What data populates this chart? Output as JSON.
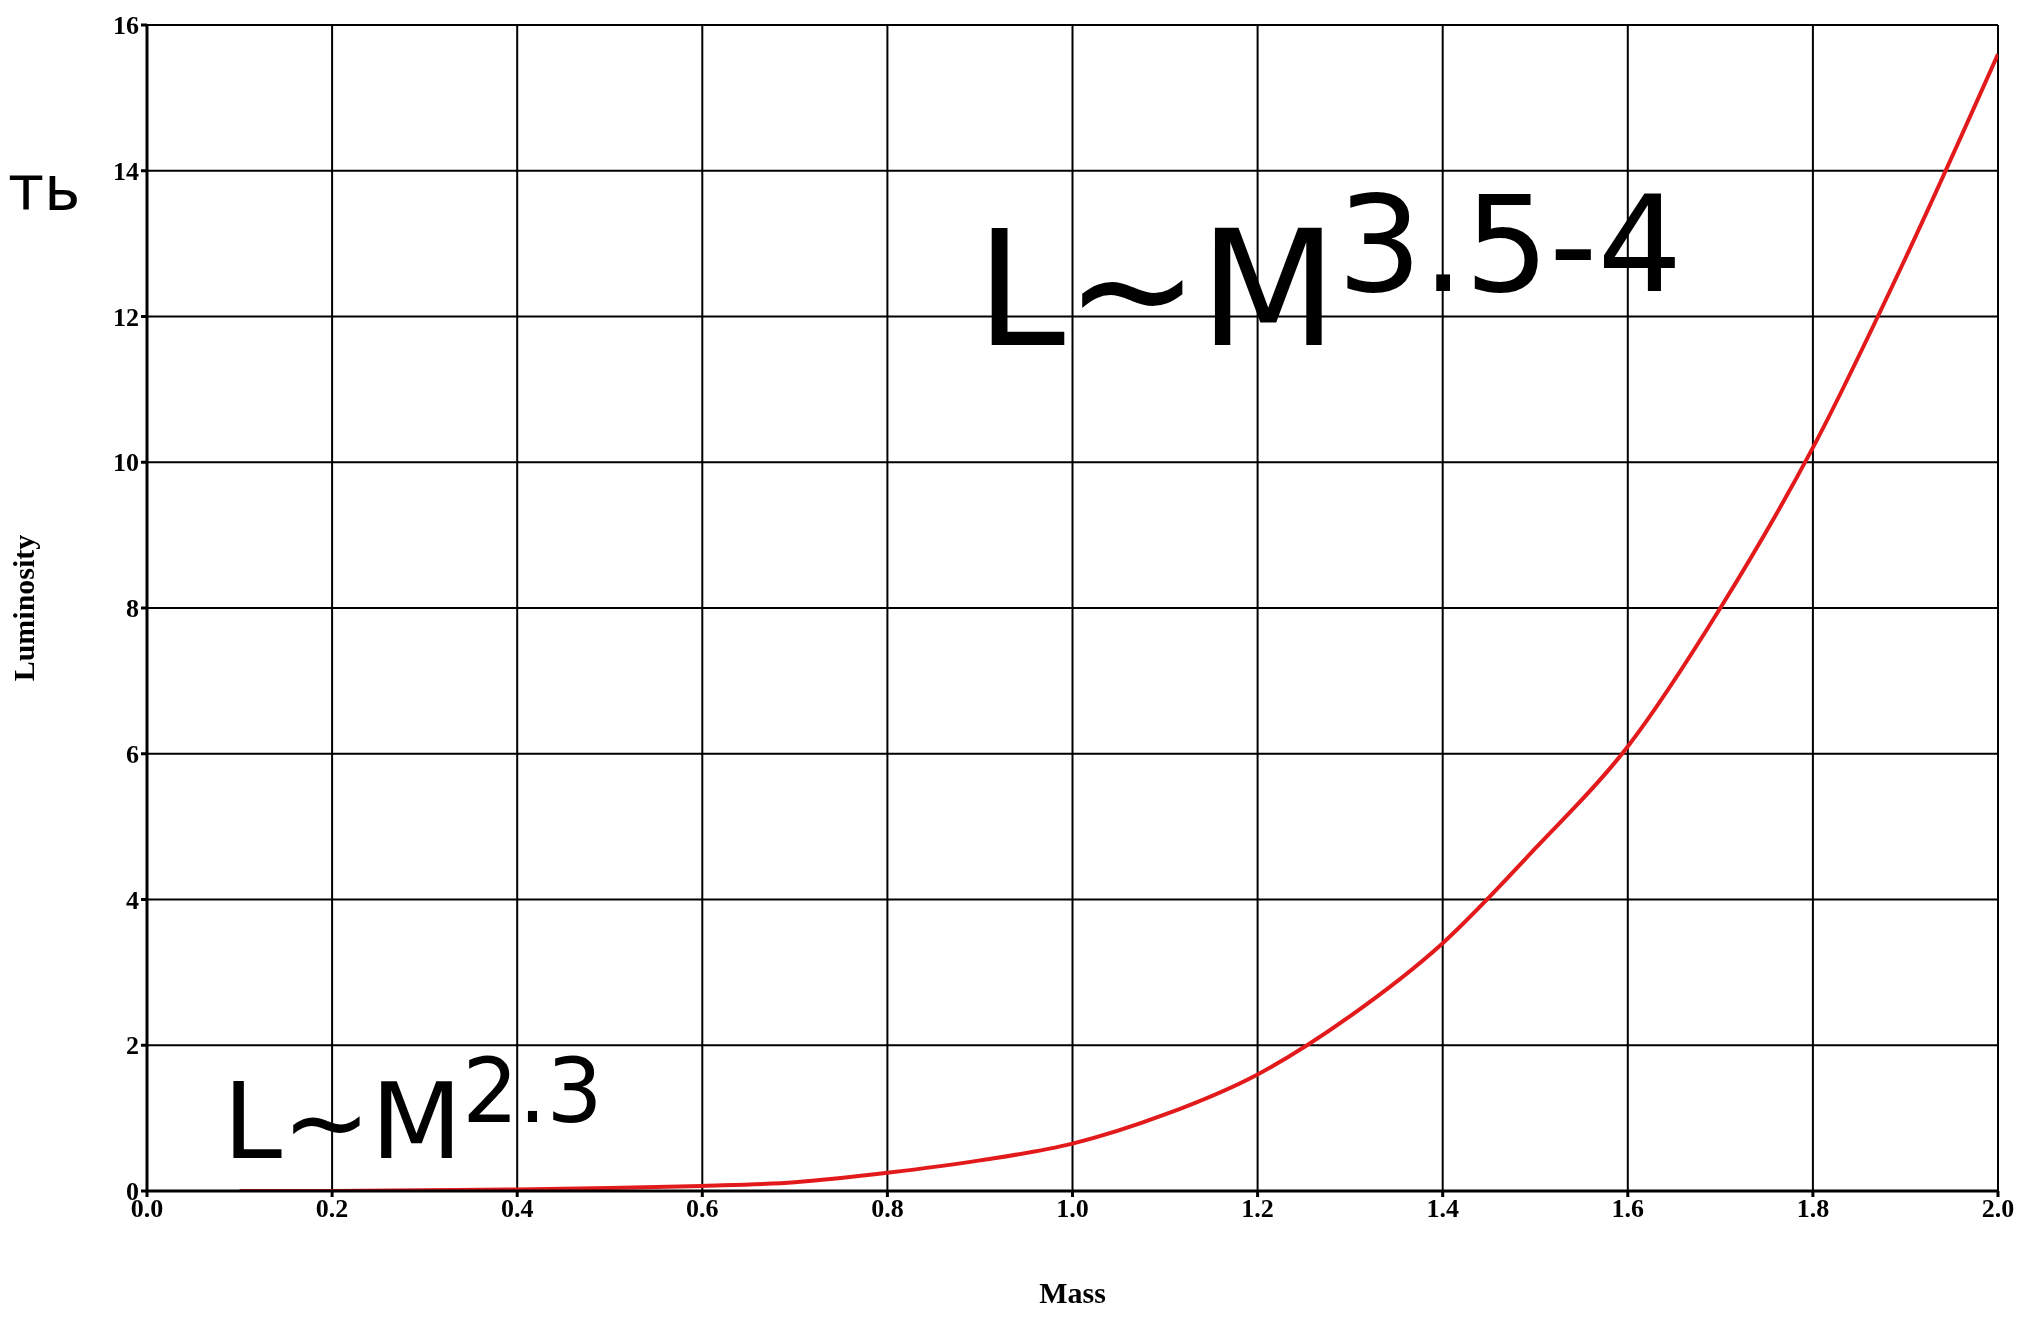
{
  "chart_data": {
    "type": "line",
    "xlabel": "Mass",
    "ylabel": "Luminosity",
    "x": [
      0.1,
      0.2,
      0.3,
      0.4,
      0.5,
      0.6,
      0.7,
      0.8,
      0.9,
      1.0,
      1.1,
      1.2,
      1.3,
      1.4,
      1.5,
      1.6,
      1.7,
      1.8,
      1.9,
      2.0
    ],
    "values": [
      0,
      0,
      0.01,
      0.02,
      0.04,
      0.07,
      0.12,
      0.25,
      0.42,
      0.65,
      1.05,
      1.6,
      2.4,
      3.4,
      4.7,
      6.1,
      8.0,
      10.2,
      12.8,
      15.6
    ],
    "color": "#e31a1c",
    "marker": "none",
    "line_style": "solid",
    "xlim": [
      0,
      2
    ],
    "xticks": [
      {
        "value": 0,
        "label": "0.0"
      },
      {
        "value": 0.2,
        "label": "0.2"
      },
      {
        "value": 0.4,
        "label": "0.4"
      },
      {
        "value": 0.6,
        "label": "0.6"
      },
      {
        "value": 0.8,
        "label": "0.8"
      },
      {
        "value": 1,
        "label": "1.0"
      },
      {
        "value": 1.2,
        "label": "1.2"
      },
      {
        "value": 1.4,
        "label": "1.4"
      },
      {
        "value": 1.6,
        "label": "1.6"
      },
      {
        "value": 1.8,
        "label": "1.8"
      },
      {
        "value": 2,
        "label": "2.0"
      }
    ],
    "ylim": [
      0,
      16
    ],
    "yticks": [
      0,
      2,
      4,
      6,
      8,
      10,
      12,
      14,
      16
    ],
    "grid": true,
    "annotations": [
      "ть",
      "L~M$^{3.5-4}$",
      "L~M$^{2.3}$"
    ]
  }
}
